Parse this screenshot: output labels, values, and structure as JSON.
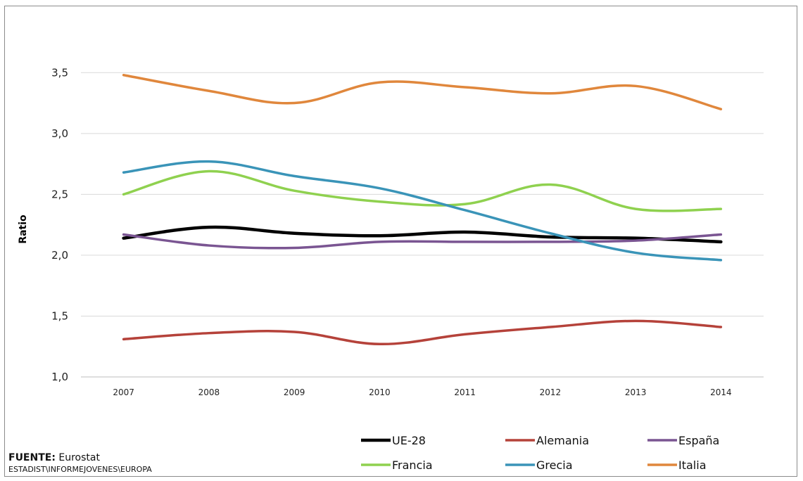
{
  "chart_data": {
    "type": "line",
    "title": "",
    "xlabel": "",
    "ylabel": "Ratio",
    "ylim": [
      1.0,
      3.75
    ],
    "yticks": [
      "1,0",
      "1,5",
      "2,0",
      "2,5",
      "3,0",
      "3,5"
    ],
    "ytick_values": [
      1.0,
      1.5,
      2.0,
      2.5,
      3.0,
      3.5
    ],
    "categories": [
      "2007",
      "2008",
      "2009",
      "2010",
      "2011",
      "2012",
      "2013",
      "2014"
    ],
    "grid": true,
    "legend_position": "bottom",
    "series": [
      {
        "name": "UE-28",
        "color": "#000000",
        "values": [
          2.14,
          2.23,
          2.18,
          2.16,
          2.19,
          2.15,
          2.14,
          2.11
        ]
      },
      {
        "name": "Alemania",
        "color": "#b5423a",
        "values": [
          1.31,
          1.36,
          1.37,
          1.27,
          1.35,
          1.41,
          1.46,
          1.41
        ]
      },
      {
        "name": "España",
        "color": "#7a5592",
        "values": [
          2.17,
          2.08,
          2.06,
          2.11,
          2.11,
          2.11,
          2.12,
          2.17
        ]
      },
      {
        "name": "Francia",
        "color": "#8fd14f",
        "values": [
          2.5,
          2.69,
          2.53,
          2.44,
          2.42,
          2.58,
          2.38,
          2.38
        ]
      },
      {
        "name": "Grecia",
        "color": "#3a94b8",
        "values": [
          2.68,
          2.77,
          2.65,
          2.55,
          2.37,
          2.18,
          2.02,
          1.96
        ]
      },
      {
        "name": "Italia",
        "color": "#e0873c",
        "values": [
          3.48,
          3.35,
          3.25,
          3.42,
          3.38,
          3.33,
          3.39,
          3.2
        ]
      }
    ]
  },
  "source": {
    "label": "FUENTE:",
    "value": " Eurostat",
    "path": "ESTADIST\\INFORMEJOVENES\\EUROPA"
  }
}
